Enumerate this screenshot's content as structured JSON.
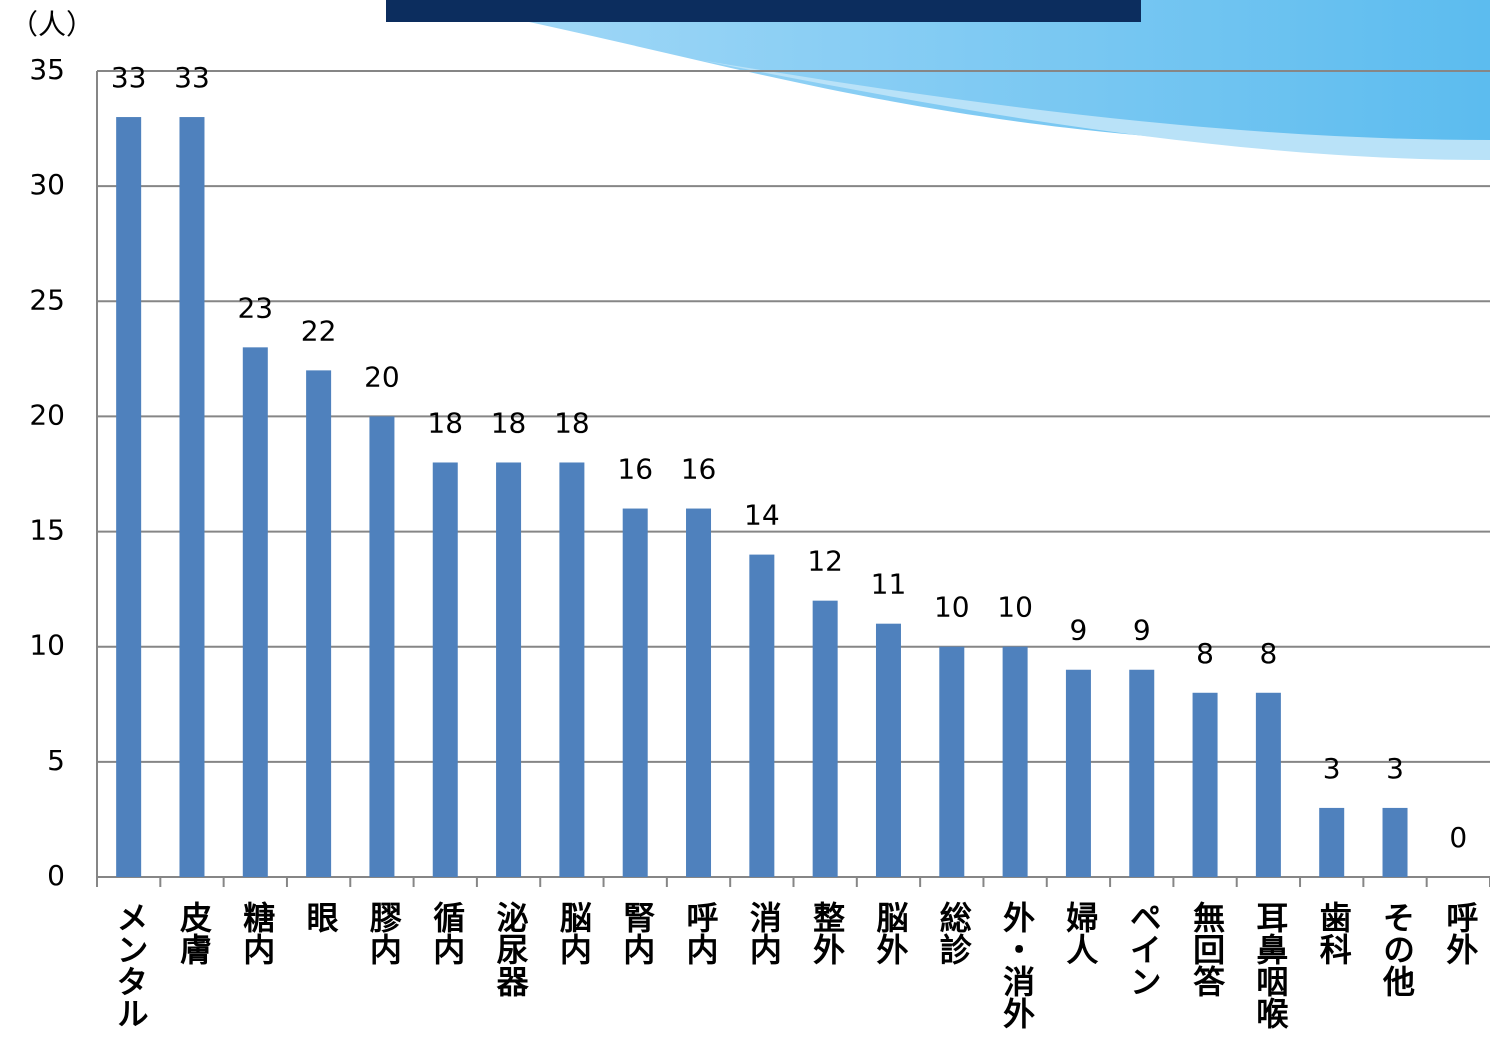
{
  "chart_data": {
    "type": "bar",
    "y_unit_label": "（人）",
    "categories": [
      "メンタル",
      "皮膚",
      "糖内",
      "眼",
      "膠内",
      "循内",
      "泌尿器",
      "脳内",
      "腎内",
      "呼内",
      "消内",
      "整外",
      "脳外",
      "総診",
      "外・消外",
      "婦人",
      "ペイン",
      "無回答",
      "耳鼻咽喉",
      "歯科",
      "その他",
      "呼外"
    ],
    "values": [
      33,
      33,
      23,
      22,
      20,
      18,
      18,
      18,
      16,
      16,
      14,
      12,
      11,
      10,
      10,
      9,
      9,
      8,
      8,
      3,
      3,
      0
    ],
    "color": "#4f81bd",
    "ylim": [
      0,
      35
    ],
    "yticks": [
      0,
      5,
      10,
      15,
      20,
      25,
      30,
      35
    ],
    "grid": true
  }
}
